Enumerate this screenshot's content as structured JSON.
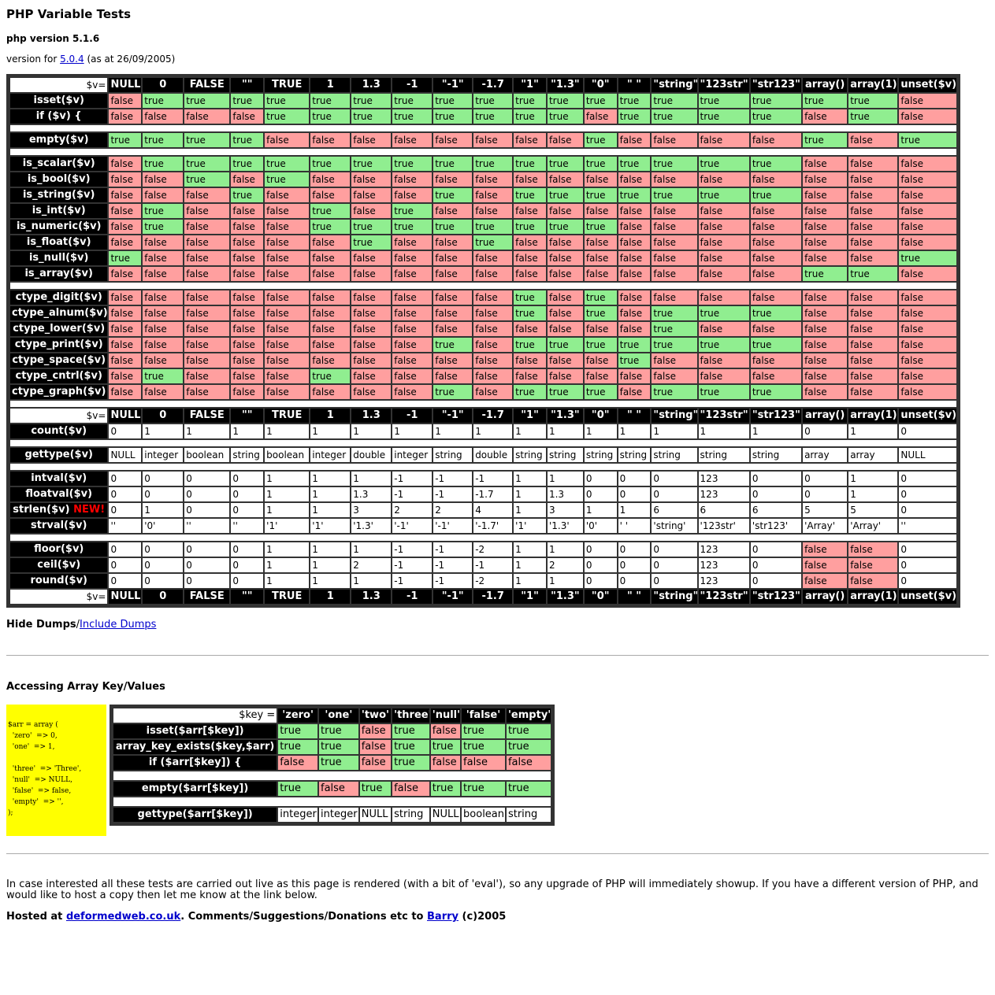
{
  "title": "PHP Variable Tests",
  "php_version": "php version 5.1.6",
  "version_for": {
    "prefix": "version for ",
    "link": "5.0.4",
    "suffix": " (as at 26/09/2005)"
  },
  "var_header": {
    "label": "$v=",
    "columns": [
      "NULL",
      "0",
      "FALSE",
      "\"\"",
      "TRUE",
      "1",
      "1.3",
      "-1",
      "\"-1\"",
      "-1.7",
      "\"1\"",
      "\"1.3\"",
      "\"0\"",
      "\" \"",
      "\"string\"",
      "\"123str\"",
      "\"str123\"",
      "array()",
      "array(1)",
      "unset($v)"
    ]
  },
  "sections": [
    {
      "rows": [
        {
          "label": "isset($v)",
          "values": [
            "false",
            "true",
            "true",
            "true",
            "true",
            "true",
            "true",
            "true",
            "true",
            "true",
            "true",
            "true",
            "true",
            "true",
            "true",
            "true",
            "true",
            "true",
            "true",
            "false"
          ]
        },
        {
          "label": "if ($v) {",
          "values": [
            "false",
            "false",
            "false",
            "false",
            "true",
            "true",
            "true",
            "true",
            "true",
            "true",
            "true",
            "true",
            "false",
            "true",
            "true",
            "true",
            "true",
            "false",
            "true",
            "false"
          ]
        }
      ]
    },
    {
      "rows": [
        {
          "label": "empty($v)",
          "values": [
            "true",
            "true",
            "true",
            "true",
            "false",
            "false",
            "false",
            "false",
            "false",
            "false",
            "false",
            "false",
            "true",
            "false",
            "false",
            "false",
            "false",
            "true",
            "false",
            "true"
          ]
        }
      ]
    },
    {
      "rows": [
        {
          "label": "is_scalar($v)",
          "values": [
            "false",
            "true",
            "true",
            "true",
            "true",
            "true",
            "true",
            "true",
            "true",
            "true",
            "true",
            "true",
            "true",
            "true",
            "true",
            "true",
            "true",
            "false",
            "false",
            "false"
          ]
        },
        {
          "label": "is_bool($v)",
          "values": [
            "false",
            "false",
            "true",
            "false",
            "true",
            "false",
            "false",
            "false",
            "false",
            "false",
            "false",
            "false",
            "false",
            "false",
            "false",
            "false",
            "false",
            "false",
            "false",
            "false"
          ]
        },
        {
          "label": "is_string($v)",
          "values": [
            "false",
            "false",
            "false",
            "true",
            "false",
            "false",
            "false",
            "false",
            "true",
            "false",
            "true",
            "true",
            "true",
            "true",
            "true",
            "true",
            "true",
            "false",
            "false",
            "false"
          ]
        },
        {
          "label": "is_int($v)",
          "values": [
            "false",
            "true",
            "false",
            "false",
            "false",
            "true",
            "false",
            "true",
            "false",
            "false",
            "false",
            "false",
            "false",
            "false",
            "false",
            "false",
            "false",
            "false",
            "false",
            "false"
          ]
        },
        {
          "label": "is_numeric($v)",
          "values": [
            "false",
            "true",
            "false",
            "false",
            "false",
            "true",
            "true",
            "true",
            "true",
            "true",
            "true",
            "true",
            "true",
            "false",
            "false",
            "false",
            "false",
            "false",
            "false",
            "false"
          ]
        },
        {
          "label": "is_float($v)",
          "values": [
            "false",
            "false",
            "false",
            "false",
            "false",
            "false",
            "true",
            "false",
            "false",
            "true",
            "false",
            "false",
            "false",
            "false",
            "false",
            "false",
            "false",
            "false",
            "false",
            "false"
          ]
        },
        {
          "label": "is_null($v)",
          "values": [
            "true",
            "false",
            "false",
            "false",
            "false",
            "false",
            "false",
            "false",
            "false",
            "false",
            "false",
            "false",
            "false",
            "false",
            "false",
            "false",
            "false",
            "false",
            "false",
            "true"
          ]
        },
        {
          "label": "is_array($v)",
          "values": [
            "false",
            "false",
            "false",
            "false",
            "false",
            "false",
            "false",
            "false",
            "false",
            "false",
            "false",
            "false",
            "false",
            "false",
            "false",
            "false",
            "false",
            "true",
            "true",
            "false"
          ]
        }
      ]
    },
    {
      "rows": [
        {
          "label": "ctype_digit($v)",
          "values": [
            "false",
            "false",
            "false",
            "false",
            "false",
            "false",
            "false",
            "false",
            "false",
            "false",
            "true",
            "false",
            "true",
            "false",
            "false",
            "false",
            "false",
            "false",
            "false",
            "false"
          ]
        },
        {
          "label": "ctype_alnum($v)",
          "values": [
            "false",
            "false",
            "false",
            "false",
            "false",
            "false",
            "false",
            "false",
            "false",
            "false",
            "true",
            "false",
            "true",
            "false",
            "true",
            "true",
            "true",
            "false",
            "false",
            "false"
          ]
        },
        {
          "label": "ctype_lower($v)",
          "values": [
            "false",
            "false",
            "false",
            "false",
            "false",
            "false",
            "false",
            "false",
            "false",
            "false",
            "false",
            "false",
            "false",
            "false",
            "true",
            "false",
            "false",
            "false",
            "false",
            "false"
          ]
        },
        {
          "label": "ctype_print($v)",
          "values": [
            "false",
            "false",
            "false",
            "false",
            "false",
            "false",
            "false",
            "false",
            "true",
            "false",
            "true",
            "true",
            "true",
            "true",
            "true",
            "true",
            "true",
            "false",
            "false",
            "false"
          ]
        },
        {
          "label": "ctype_space($v)",
          "values": [
            "false",
            "false",
            "false",
            "false",
            "false",
            "false",
            "false",
            "false",
            "false",
            "false",
            "false",
            "false",
            "false",
            "true",
            "false",
            "false",
            "false",
            "false",
            "false",
            "false"
          ]
        },
        {
          "label": "ctype_cntrl($v)",
          "values": [
            "false",
            "true",
            "false",
            "false",
            "false",
            "true",
            "false",
            "false",
            "false",
            "false",
            "false",
            "false",
            "false",
            "false",
            "false",
            "false",
            "false",
            "false",
            "false",
            "false"
          ]
        },
        {
          "label": "ctype_graph($v)",
          "values": [
            "false",
            "false",
            "false",
            "false",
            "false",
            "false",
            "false",
            "false",
            "true",
            "false",
            "true",
            "true",
            "true",
            "false",
            "true",
            "true",
            "true",
            "false",
            "false",
            "false"
          ]
        }
      ]
    }
  ],
  "conv_sections": [
    {
      "rows": [
        {
          "label": "count($v)",
          "values": [
            "0",
            "1",
            "1",
            "1",
            "1",
            "1",
            "1",
            "1",
            "1",
            "1",
            "1",
            "1",
            "1",
            "1",
            "1",
            "1",
            "1",
            "0",
            "1",
            "0"
          ],
          "colors": []
        }
      ]
    },
    {
      "rows": [
        {
          "label": "gettype($v)",
          "values": [
            "NULL",
            "integer",
            "boolean",
            "string",
            "boolean",
            "integer",
            "double",
            "integer",
            "string",
            "double",
            "string",
            "string",
            "string",
            "string",
            "string",
            "string",
            "string",
            "array",
            "array",
            "NULL"
          ],
          "colors": []
        }
      ]
    },
    {
      "rows": [
        {
          "label": "intval($v)",
          "values": [
            "0",
            "0",
            "0",
            "0",
            "1",
            "1",
            "1",
            "-1",
            "-1",
            "-1",
            "1",
            "1",
            "0",
            "0",
            "0",
            "123",
            "0",
            "0",
            "1",
            "0"
          ],
          "colors": []
        },
        {
          "label": "floatval($v)",
          "values": [
            "0",
            "0",
            "0",
            "0",
            "1",
            "1",
            "1.3",
            "-1",
            "-1",
            "-1.7",
            "1",
            "1.3",
            "0",
            "0",
            "0",
            "123",
            "0",
            "0",
            "1",
            "0"
          ],
          "colors": []
        },
        {
          "label": "strlen($v)",
          "new": "NEW!",
          "values": [
            "0",
            "1",
            "0",
            "0",
            "1",
            "1",
            "3",
            "2",
            "2",
            "4",
            "1",
            "3",
            "1",
            "1",
            "6",
            "6",
            "6",
            "5",
            "5",
            "0"
          ],
          "colors": []
        },
        {
          "label": "strval($v)",
          "values": [
            "''",
            "'0'",
            "''",
            "''",
            "'1'",
            "'1'",
            "'1.3'",
            "'-1'",
            "'-1'",
            "'-1.7'",
            "'1'",
            "'1.3'",
            "'0'",
            "' '",
            "'string'",
            "'123str'",
            "'str123'",
            "'Array'",
            "'Array'",
            "''"
          ],
          "colors": []
        }
      ]
    },
    {
      "rows": [
        {
          "label": "floor($v)",
          "values": [
            "0",
            "0",
            "0",
            "0",
            "1",
            "1",
            "1",
            "-1",
            "-1",
            "-2",
            "1",
            "1",
            "0",
            "0",
            "0",
            "123",
            "0",
            "false",
            "false",
            "0"
          ],
          "colors": [
            17,
            18
          ]
        },
        {
          "label": "ceil($v)",
          "values": [
            "0",
            "0",
            "0",
            "0",
            "1",
            "1",
            "2",
            "-1",
            "-1",
            "-1",
            "1",
            "2",
            "0",
            "0",
            "0",
            "123",
            "0",
            "false",
            "false",
            "0"
          ],
          "colors": [
            17,
            18
          ]
        },
        {
          "label": "round($v)",
          "values": [
            "0",
            "0",
            "0",
            "0",
            "1",
            "1",
            "1",
            "-1",
            "-1",
            "-2",
            "1",
            "1",
            "0",
            "0",
            "0",
            "123",
            "0",
            "false",
            "false",
            "0"
          ],
          "colors": [
            17,
            18
          ]
        }
      ]
    }
  ],
  "dumps": {
    "bold": "Hide Dumps",
    "sep": "/",
    "link": "Include Dumps"
  },
  "array_section": {
    "heading": "Accessing Array Key/Values",
    "code": "$arr = array (\n  'zero'  => 0,\n  'one'  => 1,\n\n  'three'  => 'Three',\n  'null'  => NULL,\n  'false'  => false,\n  'empty'  => '',\n);",
    "key_label": "$key =",
    "keys": [
      "'zero'",
      "'one'",
      "'two'",
      "'three'",
      "'null'",
      "'false'",
      "'empty'"
    ],
    "bool_sections": [
      {
        "rows": [
          {
            "label": "isset($arr[$key])",
            "values": [
              "true",
              "true",
              "false",
              "true",
              "false",
              "true",
              "true"
            ]
          },
          {
            "label": "array_key_exists($key,$arr)",
            "values": [
              "true",
              "true",
              "false",
              "true",
              "true",
              "true",
              "true"
            ]
          },
          {
            "label": "if ($arr[$key]) {",
            "values": [
              "false",
              "true",
              "false",
              "true",
              "false",
              "false",
              "false"
            ]
          }
        ]
      },
      {
        "rows": [
          {
            "label": "empty($arr[$key])",
            "values": [
              "true",
              "false",
              "true",
              "false",
              "true",
              "true",
              "true"
            ]
          }
        ]
      }
    ],
    "gettype": {
      "label": "gettype($arr[$key])",
      "values": [
        "integer",
        "integer",
        "NULL",
        "string",
        "NULL",
        "boolean",
        "string"
      ]
    }
  },
  "footer": {
    "text": "In case interested all these tests are carried out live as this page is rendered (with a bit of 'eval'), so any upgrade of PHP will immediately showup. If you have a different version of PHP, and would like to host a copy then let me know at the link below.",
    "hosted_prefix": "Hosted at ",
    "hosted_link": "deformedweb.co.uk",
    "hosted_mid": ". Comments/Suggestions/Donations etc to ",
    "author_link": "Barry",
    "hosted_suffix": " (c)2005"
  },
  "colors": {
    "true": "#90ee90",
    "false": "#ff9f9f",
    "header_bg": "#000000",
    "border": "#333333",
    "code_bg": "#ffff00"
  }
}
